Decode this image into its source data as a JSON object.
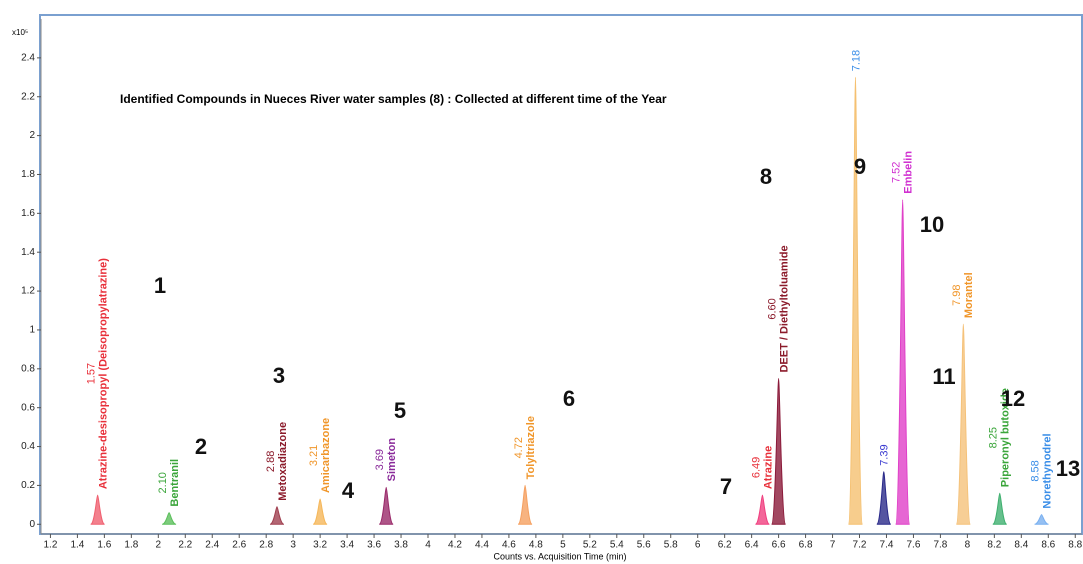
{
  "chart_data": {
    "type": "chromatogram",
    "title": "Identified Compounds in Nueces River water samples (8) : Collected at different time of the Year",
    "y_multiplier": "x10⁵",
    "x_label": "Counts vs. Acquisition Time (min)",
    "x": [
      1.55,
      2.08,
      2.88,
      3.2,
      3.69,
      4.72,
      6.48,
      6.6,
      7.17,
      7.38,
      7.52,
      7.97,
      8.24,
      8.55
    ],
    "values": [
      0.15,
      0.06,
      0.09,
      0.13,
      0.19,
      0.2,
      0.15,
      0.75,
      2.3,
      0.27,
      1.67,
      1.03,
      0.16,
      0.05
    ],
    "peak_labels": [
      "1.57",
      "2.10",
      "2.88",
      "3.21",
      "3.69",
      "4.72",
      "6.49",
      "6.60",
      "7.18",
      "7.39",
      "7.52",
      "7.98",
      "8.25",
      "8.58"
    ],
    "compounds": [
      "Atrazine-desisopropyl (Deisopropylatrazine)",
      "Bentranil",
      "Metoxadiazone",
      "Amicarbazone",
      "Simeton",
      "Tolyltriazole",
      "Atrazine",
      "DEET / Diethyltoluamide",
      null,
      null,
      "Embelin",
      "Morantel",
      "Piperonyl butoxide",
      "Norethynodrel"
    ],
    "annotations": [
      "1",
      "2",
      "3",
      "4",
      "5",
      "6",
      "7",
      "8",
      "9",
      null,
      "10",
      "11",
      "12",
      "13"
    ],
    "colors": [
      "#f06070",
      "#5cbf5c",
      "#a04050",
      "#f5b75a",
      "#9a2a6a",
      "#f5a060",
      "#f04080",
      "#8b1a3a",
      "#f5c070",
      "#2a2a8a",
      "#e040c8",
      "#f5c27a",
      "#40b070",
      "#7ab0f0"
    ],
    "label_colors": [
      "#e8303a",
      "#3aa53a",
      "#8b1a2a",
      "#f0962a",
      "#8a2a9a",
      "#f0962a",
      "#e8303a",
      "#8b1a2a",
      "#3a8ee8",
      "#3a3ad0",
      "#d030d0",
      "#f0962a",
      "#3aa53a",
      "#3a8ee8"
    ],
    "xlim": [
      1.13,
      8.85
    ],
    "ylim": [
      -0.05,
      2.6
    ],
    "xticks": [
      1.2,
      1.4,
      1.6,
      1.8,
      2,
      2.2,
      2.4,
      2.6,
      2.8,
      3,
      3.2,
      3.4,
      3.6,
      3.8,
      4,
      4.2,
      4.4,
      4.6,
      4.8,
      5,
      5.2,
      5.4,
      5.6,
      5.8,
      6,
      6.2,
      6.4,
      6.6,
      6.8,
      7,
      7.2,
      7.4,
      7.6,
      7.8,
      8,
      8.2,
      8.4,
      8.6,
      8.8
    ],
    "yticks": [
      0,
      0.2,
      0.4,
      0.6,
      0.8,
      1,
      1.2,
      1.4,
      1.6,
      1.8,
      2,
      2.2,
      2.4
    ]
  }
}
